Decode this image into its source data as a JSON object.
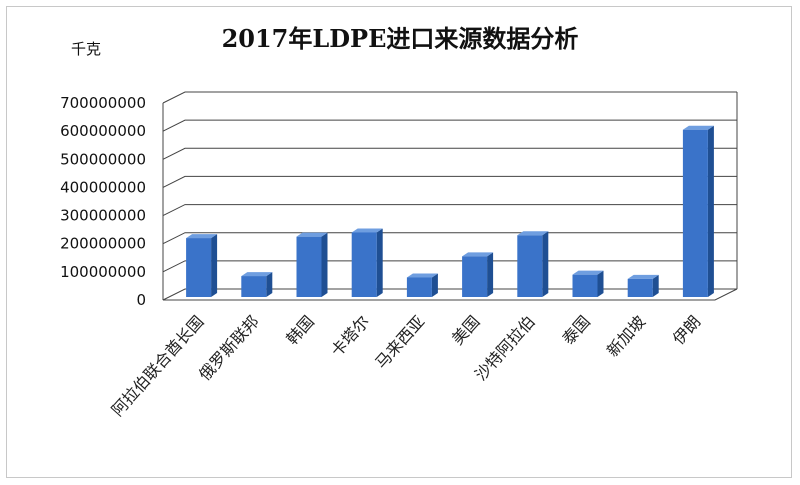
{
  "chart_data": {
    "type": "bar",
    "title": "2017年LDPE进口来源数据分析",
    "ylabel": "千克",
    "xlabel": "",
    "categories": [
      "阿拉伯联合酋长国",
      "俄罗斯联邦",
      "韩国",
      "卡塔尔",
      "马来西亚",
      "美国",
      "沙特阿拉伯",
      "泰国",
      "新加坡",
      "伊朗"
    ],
    "values": [
      220000000,
      85000000,
      225000000,
      240000000,
      80000000,
      155000000,
      230000000,
      90000000,
      75000000,
      605000000
    ],
    "ylim": [
      0,
      700000000
    ],
    "yticks": [
      "0",
      "100000000",
      "200000000",
      "300000000",
      "400000000",
      "500000000",
      "600000000",
      "700000000"
    ],
    "grid": true,
    "three_d": true,
    "colors": {
      "bar": "#3a73c9",
      "bar_side": "#1f4f93",
      "bar_top": "#6f9ee0",
      "grid": "#444444"
    }
  }
}
